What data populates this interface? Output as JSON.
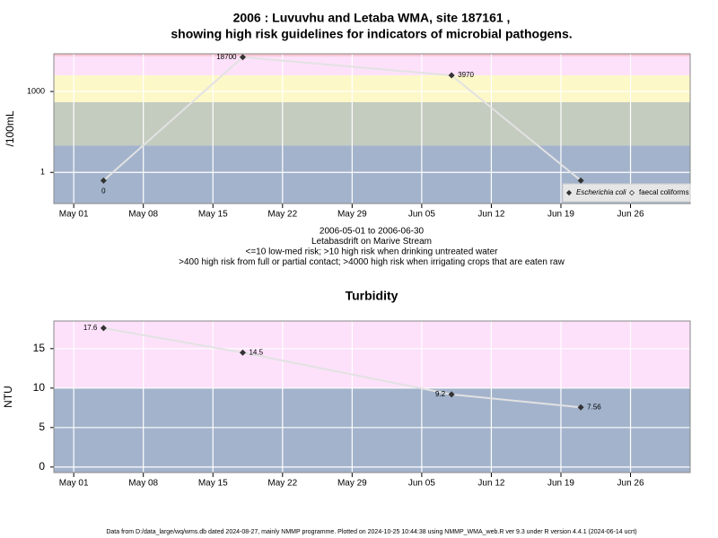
{
  "chart_data": [
    {
      "type": "line",
      "title": "2006 : Luvuvhu and Letaba WMA, site 187161 ,",
      "subtitle": "showing high risk guidelines for indicators of microbial pathogens.",
      "ylabel": "/100mL",
      "log_scale": true,
      "notes": [
        "2006-05-01 to 2006-06-30",
        "Letabasdrift on Marive Stream",
        "<=10 low-med risk; >10 high risk when drinking untreated water",
        ">400 high risk from full or partial contact; >4000 high risk when irrigating crops that are eaten raw"
      ],
      "x": [
        "05-04",
        "05-18",
        "06-08",
        "06-21"
      ],
      "series": [
        {
          "name": "Escherichia coli",
          "color": "#333333",
          "values": [
            0.5,
            18700,
            3970,
            0.5
          ],
          "value_labels": [
            "0",
            "18700",
            "3970",
            null
          ]
        }
      ],
      "legend": [
        {
          "label": "Escherichia coli",
          "marker": "filled"
        },
        {
          "label": "faecal coliforms",
          "marker": "open"
        }
      ],
      "xlim": [
        "04-29",
        "07-02"
      ],
      "xticks": [
        {
          "value": "05-01",
          "label": "May 01"
        },
        {
          "value": "05-08",
          "label": "May 08"
        },
        {
          "value": "05-15",
          "label": "May 15"
        },
        {
          "value": "05-22",
          "label": "May 22"
        },
        {
          "value": "05-29",
          "label": "May 29"
        },
        {
          "value": "06-05",
          "label": "Jun 05"
        },
        {
          "value": "06-12",
          "label": "Jun 12"
        },
        {
          "value": "06-19",
          "label": "Jun 19"
        },
        {
          "value": "06-26",
          "label": "Jun 26"
        }
      ],
      "ylim": [
        0.07,
        25000
      ],
      "yticks": [
        1,
        1000
      ],
      "grid": true,
      "line_color": "#e2e2e2",
      "bands": [
        {
          "from": 0.07,
          "to": 10,
          "color": "#a3b3cc"
        },
        {
          "from": 10,
          "to": 400,
          "color": "#c4cbbf"
        },
        {
          "from": 400,
          "to": 4000,
          "color": "#fdf8c8"
        },
        {
          "from": 4000,
          "to": 20000,
          "color": "#fde1fa"
        },
        {
          "from": 20000,
          "to": 25000,
          "color": "#f8c6d4"
        }
      ]
    },
    {
      "type": "line",
      "title": "Turbidity",
      "ylabel": "NTU",
      "log_scale": false,
      "x": [
        "05-04",
        "05-18",
        "06-08",
        "06-21"
      ],
      "series": [
        {
          "name": "Turbidity",
          "color": "#333333",
          "values": [
            17.6,
            14.5,
            9.2,
            7.56
          ]
        }
      ],
      "xlim": [
        "04-29",
        "07-02"
      ],
      "xticks": [
        {
          "value": "05-01",
          "label": "May 01"
        },
        {
          "value": "05-08",
          "label": "May 08"
        },
        {
          "value": "05-15",
          "label": "May 15"
        },
        {
          "value": "05-22",
          "label": "May 22"
        },
        {
          "value": "05-29",
          "label": "May 29"
        },
        {
          "value": "06-05",
          "label": "Jun 05"
        },
        {
          "value": "06-12",
          "label": "Jun 12"
        },
        {
          "value": "06-19",
          "label": "Jun 19"
        },
        {
          "value": "06-26",
          "label": "Jun 26"
        }
      ],
      "ylim": [
        -0.7,
        18.5
      ],
      "yticks": [
        0,
        5,
        10,
        15
      ],
      "grid": true,
      "line_color": "#e2e2e2",
      "bands": [
        {
          "from": -0.7,
          "to": 10,
          "color": "#a3b3cc"
        },
        {
          "from": 10,
          "to": 18.5,
          "color": "#fde1fa"
        }
      ]
    }
  ],
  "footer": "Data from D:/data_large/wq/wms.db dated 2024-08-27, mainly NMMP programme. Plotted on 2024-10-25 10:44:38 using NMMP_WMA_web.R ver 9.3 under R version 4.4.1 (2024-06-14 ucrt)"
}
